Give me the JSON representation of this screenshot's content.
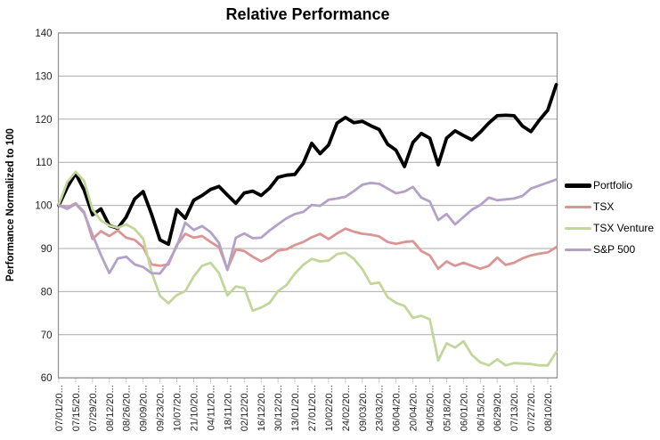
{
  "chart_data": {
    "type": "line",
    "title": "Relative Performance",
    "xlabel": "",
    "ylabel": "Performance Normalized to 100",
    "ylim": [
      60,
      140
    ],
    "y_ticks": [
      140,
      130,
      120,
      110,
      100,
      90,
      80,
      70,
      60
    ],
    "grid": true,
    "legend_position": "right",
    "x_label_frequency": "every 2nd data point",
    "x_labels": [
      "07/01/20...",
      "07/15/20...",
      "07/29/20...",
      "08/12/20...",
      "08/26/20...",
      "09/09/20...",
      "09/23/20...",
      "10/07/20...",
      "21/10/20...",
      "04/11/20...",
      "18/11/20...",
      "02/12/20...",
      "16/12/20...",
      "30/12/20...",
      "13/01/20...",
      "27/01/20...",
      "10/02/20...",
      "24/02/20...",
      "09/03/20...",
      "23/03/20...",
      "06/04/20...",
      "20/04/20...",
      "04/05/20...",
      "05/18/20...",
      "06/01/20...",
      "06/15/20...",
      "06/29/20...",
      "07/13/20...",
      "07/27/20...",
      "08/10/20..."
    ],
    "series": [
      {
        "name": "Portfolio",
        "color": "#000000",
        "width": 3.8,
        "values": [
          100,
          104.2,
          107.4,
          103.6,
          97.8,
          99.2,
          95.3,
          94.7,
          97.3,
          101.5,
          103.2,
          98,
          92,
          91,
          99,
          97,
          101.2,
          102.3,
          103.7,
          104.4,
          102.4,
          100.5,
          102.9,
          103.3,
          102.3,
          104,
          106.5,
          107,
          107.2,
          109.8,
          114.4,
          112,
          114,
          119.1,
          120.4,
          119.2,
          119.5,
          118.5,
          117.6,
          114.2,
          112.8,
          109,
          114.6,
          116.7,
          115.6,
          109.4,
          115.6,
          117.3,
          116.2,
          115.2,
          117,
          119.1,
          120.8,
          120.9,
          120.8,
          118.4,
          117.1,
          119.8,
          122.1,
          128
        ]
      },
      {
        "name": "TSX",
        "color": "#D99694",
        "width": 2.8,
        "values": [
          100,
          99.5,
          100.5,
          98.5,
          92.2,
          94,
          92.9,
          94.2,
          92.5,
          92,
          90.3,
          86.3,
          86,
          86.3,
          90.8,
          93.4,
          92.5,
          92.9,
          91.5,
          90.3,
          85.2,
          89.8,
          89.4,
          88.1,
          87,
          88,
          89.5,
          89.8,
          90.8,
          91.5,
          92.6,
          93.4,
          92.2,
          93.5,
          94.6,
          93.9,
          93.4,
          93.2,
          92.8,
          91.5,
          91.1,
          91.5,
          91.7,
          89.4,
          88.4,
          85.3,
          87,
          86,
          86.7,
          86,
          85.3,
          86,
          87.9,
          86.2,
          86.7,
          87.7,
          88.4,
          88.8,
          89.1,
          90.3
        ]
      },
      {
        "name": "TSX Venture",
        "color": "#C3D69B",
        "width": 2.8,
        "values": [
          100.2,
          105.4,
          107.8,
          105.7,
          99,
          96.5,
          95.3,
          94.8,
          95.6,
          94.5,
          92.3,
          84.6,
          79,
          77.3,
          79.2,
          80.1,
          83.5,
          86,
          86.7,
          84.3,
          79.1,
          81.2,
          80.8,
          75.6,
          76.3,
          77.4,
          80.1,
          81.5,
          84.2,
          86.2,
          87.6,
          87,
          87.2,
          88.7,
          89,
          87.6,
          85.2,
          81.8,
          82.1,
          78.7,
          77.4,
          76.7,
          73.9,
          74.4,
          73.6,
          64,
          68,
          67,
          68.5,
          65.3,
          63.6,
          62.9,
          64.3,
          62.9,
          63.4,
          63.3,
          63.2,
          62.9,
          62.9,
          66
        ]
      },
      {
        "name": "S&P 500",
        "color": "#B3A2C7",
        "width": 2.8,
        "values": [
          100,
          99.2,
          100.3,
          98.2,
          93.2,
          88.5,
          84.3,
          87.7,
          88.1,
          86.3,
          85.7,
          84.3,
          84.2,
          86.8,
          90.5,
          96,
          94.3,
          95.2,
          93.8,
          91.3,
          85,
          92.5,
          93.5,
          92.4,
          92.5,
          94.2,
          95.6,
          97,
          98,
          98.5,
          100.1,
          99.9,
          101.3,
          101.6,
          102,
          103.3,
          104.8,
          105.2,
          105,
          103.9,
          102.8,
          103.2,
          104.3,
          101.8,
          100.9,
          96.6,
          98,
          95.6,
          97.3,
          99,
          100.1,
          101.8,
          101.2,
          101.4,
          101.6,
          102.2,
          103.9,
          104.6,
          105.3,
          106
        ]
      }
    ],
    "colors": {
      "gridline": "#ababab",
      "plot_border": "#8e8e8e",
      "background": "#ffffff"
    }
  }
}
